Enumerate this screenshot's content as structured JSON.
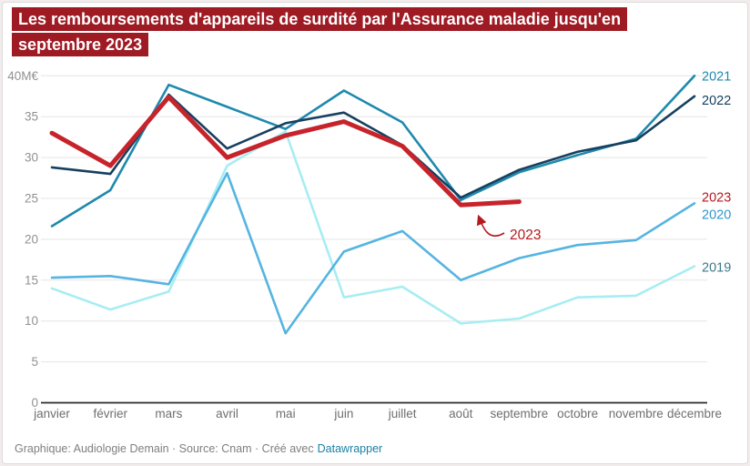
{
  "header": {
    "title": "Les remboursements d'appareils de surdité par l'Assurance maladie jusqu'en septembre 2023"
  },
  "footer": {
    "credit": "Graphique: Audiologie Demain · Source: Cnam · Créé avec",
    "link_label": "Datawrapper"
  },
  "colors": {
    "title_bg": "#9e1b24",
    "title_fg": "#ffffff",
    "axis": "#2b2b2b",
    "grid": "#e5e5e5",
    "tick": "#919191",
    "month": "#6f6f6f",
    "footer": "#7f7f7f",
    "link": "#1a80a5"
  },
  "chart_data": {
    "type": "line",
    "title": "Les remboursements d'appareils de surdité par l'Assurance maladie jusqu'en septembre 2023",
    "unit": "M€",
    "xlabel": "",
    "ylabel": "M€",
    "ylim": [
      0,
      40
    ],
    "y_tick_step": 5,
    "y_top_label": "40M€",
    "grid": "horizontal",
    "legend_position": "right-edge-line-labels",
    "x": [
      "janvier",
      "février",
      "mars",
      "avril",
      "mai",
      "juin",
      "juillet",
      "août",
      "septembre",
      "octobre",
      "novembre",
      "décembre"
    ],
    "series": [
      {
        "name": "2019",
        "color": "#a7edf2",
        "label_color": "#3d7a8c",
        "values": [
          14.0,
          11.4,
          13.6,
          29.0,
          33.2,
          12.9,
          14.2,
          9.7,
          10.3,
          12.9,
          13.1,
          16.7
        ]
      },
      {
        "name": "2020",
        "color": "#55b4e1",
        "label_color": "#2e97c9",
        "values": [
          15.3,
          15.5,
          14.5,
          28.1,
          8.5,
          18.5,
          21.0,
          15.0,
          17.7,
          19.3,
          19.9,
          24.4
        ]
      },
      {
        "name": "2021",
        "color": "#1f89ad",
        "label_color": "#1f89ad",
        "values": [
          21.6,
          26.0,
          38.9,
          36.2,
          33.5,
          38.2,
          34.3,
          24.8,
          28.2,
          30.3,
          32.3,
          40.0
        ]
      },
      {
        "name": "2022",
        "color": "#17405f",
        "label_color": "#17405f",
        "values": [
          28.8,
          28.0,
          37.7,
          31.1,
          34.2,
          35.5,
          31.5,
          25.1,
          28.5,
          30.7,
          32.1,
          37.5
        ]
      },
      {
        "name": "2023",
        "color": "#c7232b",
        "label_color": "#b5191f",
        "emphasis": true,
        "values": [
          33.0,
          29.0,
          37.4,
          30.0,
          32.7,
          34.4,
          31.4,
          24.2,
          24.6
        ]
      }
    ],
    "annotation": {
      "text": "2023",
      "color": "#b5191f",
      "points_to": {
        "x": "septembre",
        "series": "2023"
      }
    }
  }
}
